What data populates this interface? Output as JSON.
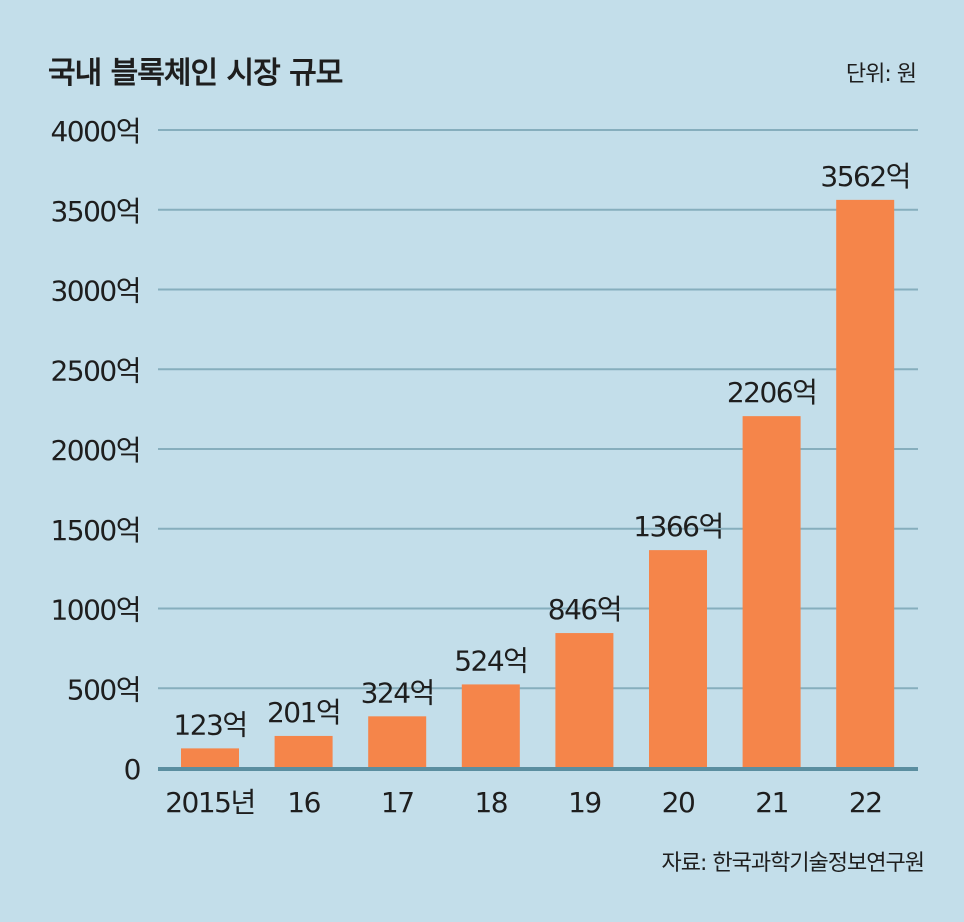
{
  "chart_data": {
    "type": "bar",
    "title": "국내 블록체인 시장 규모",
    "unit_label": "단위: 원",
    "source": "자료: 한국과학기술정보연구원",
    "categories": [
      "2015년",
      "16",
      "17",
      "18",
      "19",
      "20",
      "21",
      "22"
    ],
    "values": [
      123,
      201,
      324,
      524,
      846,
      1366,
      2206,
      3562
    ],
    "data_labels": [
      "123억",
      "201억",
      "324억",
      "524억",
      "846억",
      "1366억",
      "2206억",
      "3562억"
    ],
    "yticks": [
      0,
      500,
      1000,
      1500,
      2000,
      2500,
      3000,
      3500,
      4000
    ],
    "ytick_labels": [
      "0",
      "500억",
      "1000억",
      "1500억",
      "2000억",
      "2500억",
      "3000억",
      "3500억",
      "4000억"
    ],
    "ylim": [
      0,
      4000
    ],
    "grid": true,
    "colors": {
      "bar": "#f5854a",
      "grid": "#86aebd",
      "baseline": "#5b8ea0",
      "background": "#c3deea"
    }
  }
}
